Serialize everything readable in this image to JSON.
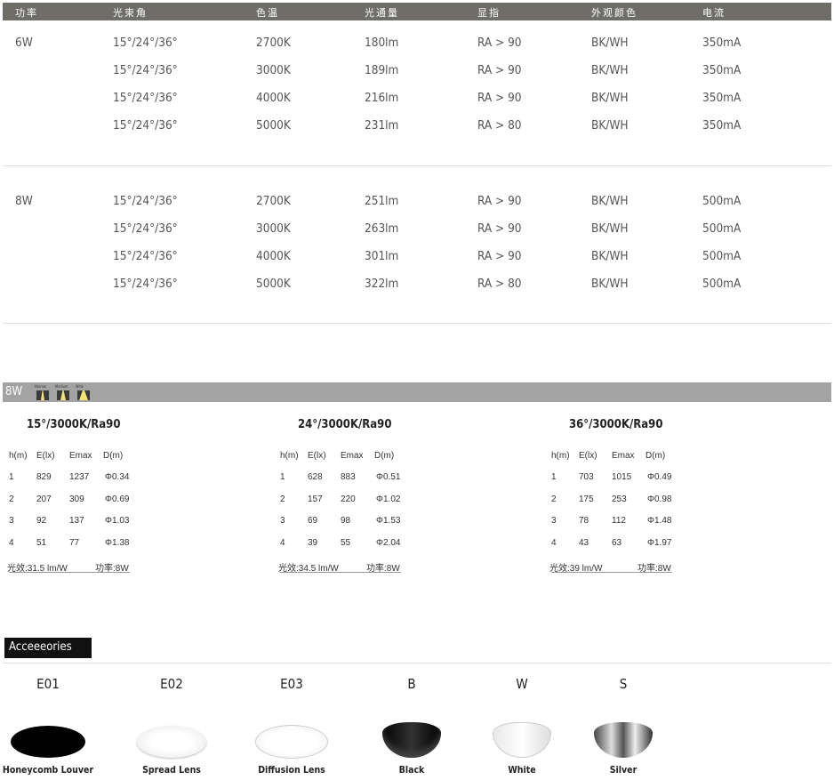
{
  "spec_table": {
    "headers": [
      "功率",
      "光束角",
      "色温",
      "光通量",
      "显指",
      "外观颜色",
      "电流"
    ],
    "groups": [
      {
        "power": "6W",
        "rows": [
          [
            "15°/24°/36°",
            "2700K",
            "180lm",
            "RA > 90",
            "BK/WH",
            "350mA"
          ],
          [
            "15°/24°/36°",
            "3000K",
            "189lm",
            "RA > 90",
            "BK/WH",
            "350mA"
          ],
          [
            "15°/24°/36°",
            "4000K",
            "216lm",
            "RA > 90",
            "BK/WH",
            "350mA"
          ],
          [
            "15°/24°/36°",
            "5000K",
            "231lm",
            "RA > 80",
            "BK/WH",
            "350mA"
          ]
        ]
      },
      {
        "power": "8W",
        "rows": [
          [
            "15°/24°/36°",
            "2700K",
            "251lm",
            "RA > 90",
            "BK/WH",
            "500mA"
          ],
          [
            "15°/24°/36°",
            "3000K",
            "263lm",
            "RA > 90",
            "BK/WH",
            "500mA"
          ],
          [
            "15°/24°/36°",
            "4000K",
            "301lm",
            "RA > 90",
            "BK/WH",
            "500mA"
          ],
          [
            "15°/24°/36°",
            "5000K",
            "322lm",
            "RA > 80",
            "BK/WH",
            "500mA"
          ]
        ]
      }
    ]
  },
  "photometric": {
    "bar_label": "8W",
    "beam_icons": [
      {
        "label": "Narrow",
        "name": "narrow-beam-icon"
      },
      {
        "label": "Medium",
        "name": "medium-beam-icon"
      },
      {
        "label": "Wide",
        "name": "wide-beam-icon"
      }
    ],
    "colors": {
      "header_bar": "#6f6d68",
      "section_bar": "#a3a3a3",
      "beam": "#f3e27a"
    },
    "headers": [
      "h(m)",
      "E(lx)",
      "Emax",
      "D(m)"
    ],
    "tables": [
      {
        "title": "15°/3000K/Ra90",
        "rows": [
          [
            "1",
            "829",
            "1237",
            "Φ0.34"
          ],
          [
            "2",
            "207",
            "309",
            "Φ0.69"
          ],
          [
            "3",
            "92",
            "137",
            "Φ1.03"
          ],
          [
            "4",
            "51",
            "77",
            "Φ1.38"
          ]
        ],
        "efficacy": "光效:31.5 lm/W",
        "power": "功率:8W"
      },
      {
        "title": "24°/3000K/Ra90",
        "rows": [
          [
            "1",
            "628",
            "883",
            "Φ0.51"
          ],
          [
            "2",
            "157",
            "220",
            "Φ1.02"
          ],
          [
            "3",
            "69",
            "98",
            "Φ1.53"
          ],
          [
            "4",
            "39",
            "55",
            "Φ2.04"
          ]
        ],
        "efficacy": "光效:34.5 lm/W",
        "power": "功率:8W"
      },
      {
        "title": "36°/3000K/Ra90",
        "rows": [
          [
            "1",
            "703",
            "1015",
            "Φ0.49"
          ],
          [
            "2",
            "175",
            "253",
            "Φ0.98"
          ],
          [
            "3",
            "78",
            "112",
            "Φ1.48"
          ],
          [
            "4",
            "43",
            "63",
            "Φ1.97"
          ]
        ],
        "efficacy": "光效:39 lm/W",
        "power": "功率:8W"
      }
    ]
  },
  "accessories": {
    "title": "Acceeeories",
    "items": [
      {
        "code": "E01",
        "label": "Honeycomb Louver",
        "kind": "honeycomb"
      },
      {
        "code": "E02",
        "label": "Spread Lens",
        "kind": "lens"
      },
      {
        "code": "E03",
        "label": "Diffusion Lens",
        "kind": "lens2"
      },
      {
        "code": "B",
        "label": "Black",
        "kind": "black"
      },
      {
        "code": "W",
        "label": "White",
        "kind": "white"
      },
      {
        "code": "S",
        "label": "Silver",
        "kind": "silver"
      }
    ]
  }
}
